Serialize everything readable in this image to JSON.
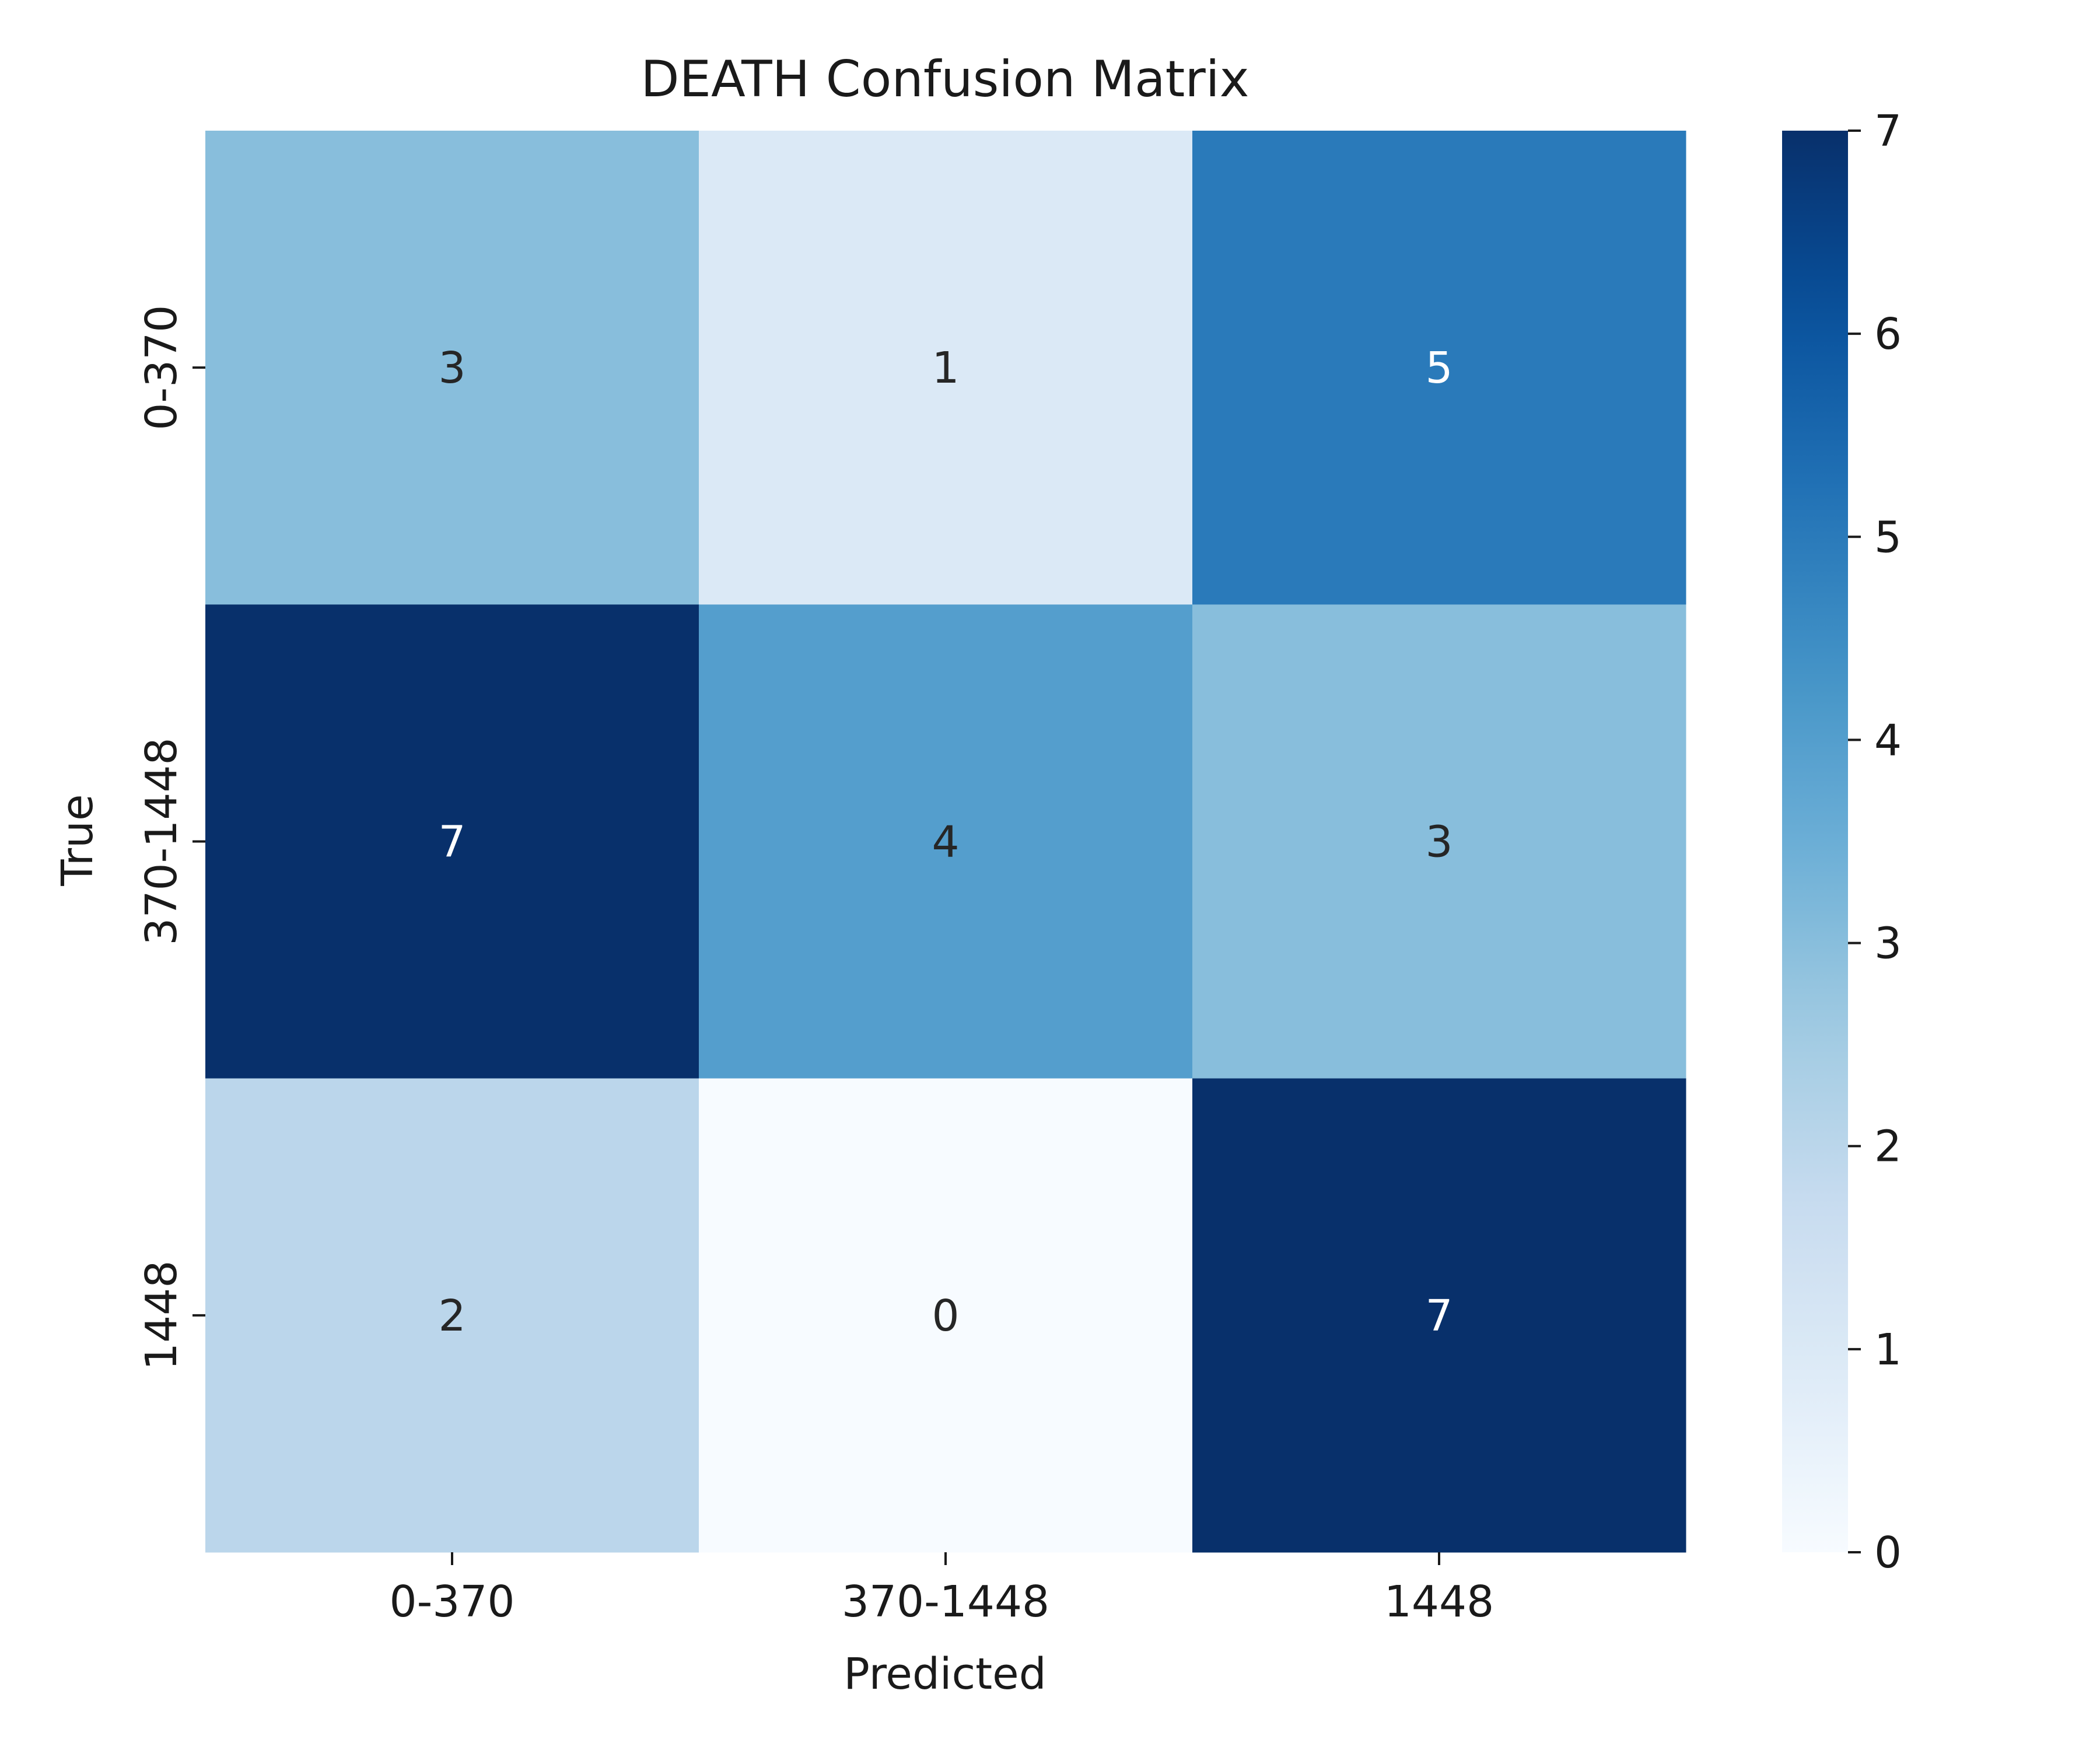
{
  "chart_data": {
    "type": "heatmap",
    "title": "DEATH Confusion Matrix",
    "xlabel": "Predicted",
    "ylabel": "True",
    "x_categories": [
      "0-370",
      "370-1448",
      "1448"
    ],
    "y_categories": [
      "0-370",
      "370-1448",
      "1448"
    ],
    "values": [
      [
        3,
        1,
        5
      ],
      [
        7,
        4,
        3
      ],
      [
        2,
        0,
        7
      ]
    ],
    "colorbar": {
      "min": 0,
      "max": 7,
      "ticks": [
        "0",
        "1",
        "2",
        "3",
        "4",
        "5",
        "6",
        "7"
      ],
      "colormap": "Blues",
      "low_color": "#f7fbff",
      "high_color": "#08306b"
    },
    "grid": false,
    "legend": "colorbar-right"
  }
}
